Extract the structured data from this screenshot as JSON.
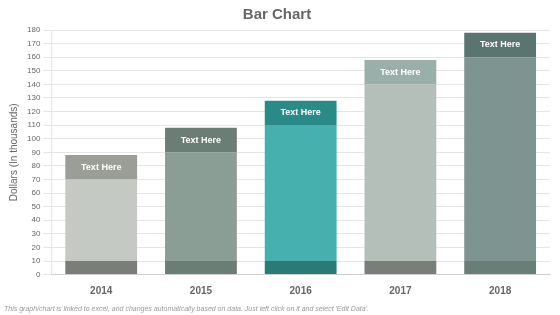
{
  "chart_data": {
    "type": "bar",
    "title": "Bar Chart",
    "categories": [
      "2014",
      "2015",
      "2016",
      "2017",
      "2018"
    ],
    "stacked": true,
    "series": [
      {
        "values": [
          10,
          10,
          10,
          10,
          10
        ],
        "colors": [
          "#7a7e78",
          "#6a7e76",
          "#2a7a78",
          "#7a7e78",
          "#6a7e78"
        ]
      },
      {
        "values": [
          60,
          80,
          100,
          130,
          150
        ],
        "colors": [
          "#c5c9c3",
          "#8a9e96",
          "#45b0ae",
          "#b5bfba",
          "#7d9490"
        ]
      },
      {
        "values": [
          18,
          18,
          18,
          18,
          18
        ],
        "colors": [
          "#9a9e96",
          "#6a7e76",
          "#2a8a88",
          "#9aaeaa",
          "#5a7470"
        ],
        "label": "Text Here"
      }
    ],
    "ylabel": "Dollars (In thousands)",
    "ylim": [
      0,
      180
    ],
    "yticks": [
      0,
      10,
      20,
      30,
      40,
      50,
      60,
      70,
      80,
      90,
      100,
      110,
      120,
      130,
      140,
      150,
      160,
      170,
      180
    ],
    "grid": true,
    "caption": "This graph/chart is linked to excel, and changes automatically based on data. Just left click on it and select 'Edit Data'."
  }
}
